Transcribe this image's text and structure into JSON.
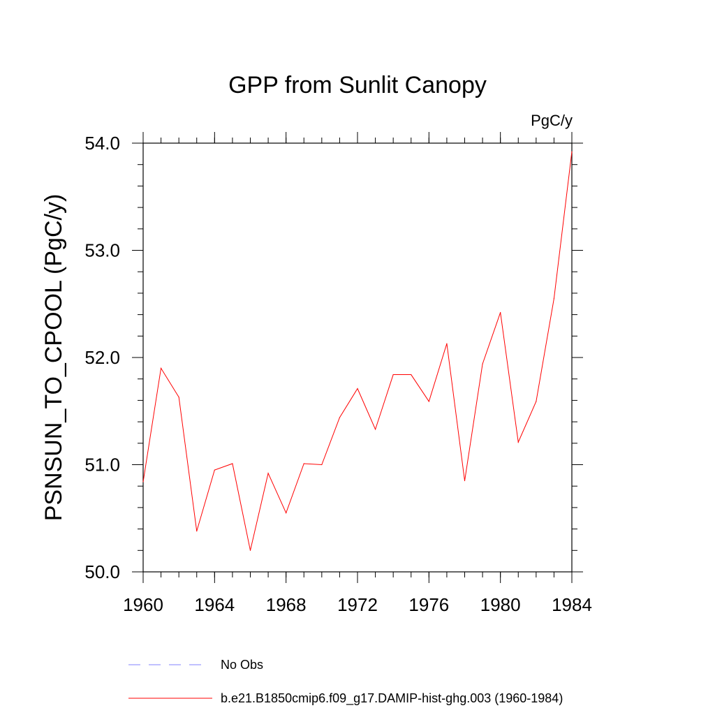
{
  "chart_data": {
    "type": "line",
    "title": "GPP from Sunlit Canopy",
    "units_label": "PgC/y",
    "xlabel": "",
    "ylabel": "PSNSUN_TO_CPOOL  (PgC/y)",
    "xlim": [
      1960,
      1984
    ],
    "ylim": [
      50.0,
      54.0
    ],
    "x_ticks": [
      1960,
      1964,
      1968,
      1972,
      1976,
      1980,
      1984
    ],
    "x_tick_labels": [
      "1960",
      "1964",
      "1968",
      "1972",
      "1976",
      "1980",
      "1984"
    ],
    "y_ticks": [
      50.0,
      51.0,
      52.0,
      53.0,
      54.0
    ],
    "y_tick_labels": [
      "50.0",
      "51.0",
      "52.0",
      "53.0",
      "54.0"
    ],
    "x_minor_step": 1,
    "y_minor_step": 0.2,
    "grid": false,
    "legend_position": "bottom",
    "legend": [
      {
        "label": "No Obs",
        "color": "#8080ff",
        "dash": "dashed"
      },
      {
        "label": "b.e21.B1850cmip6.f09_g17.DAMIP-hist-ghg.003 (1960-1984)",
        "color": "#ff0000",
        "dash": "solid"
      }
    ],
    "series": [
      {
        "name": "b.e21.B1850cmip6.f09_g17.DAMIP-hist-ghg.003 (1960-1984)",
        "color": "#ff0000",
        "x": [
          1960,
          1961,
          1962,
          1963,
          1964,
          1965,
          1966,
          1967,
          1968,
          1969,
          1970,
          1971,
          1972,
          1973,
          1974,
          1975,
          1976,
          1977,
          1978,
          1979,
          1980,
          1981,
          1982,
          1983,
          1984
        ],
        "y": [
          50.84,
          51.9,
          51.63,
          50.38,
          50.95,
          51.01,
          50.2,
          50.92,
          50.55,
          51.01,
          51.0,
          51.44,
          51.71,
          51.33,
          51.84,
          51.84,
          51.59,
          52.13,
          50.85,
          51.94,
          52.42,
          51.21,
          51.59,
          52.55,
          53.92
        ]
      }
    ]
  }
}
